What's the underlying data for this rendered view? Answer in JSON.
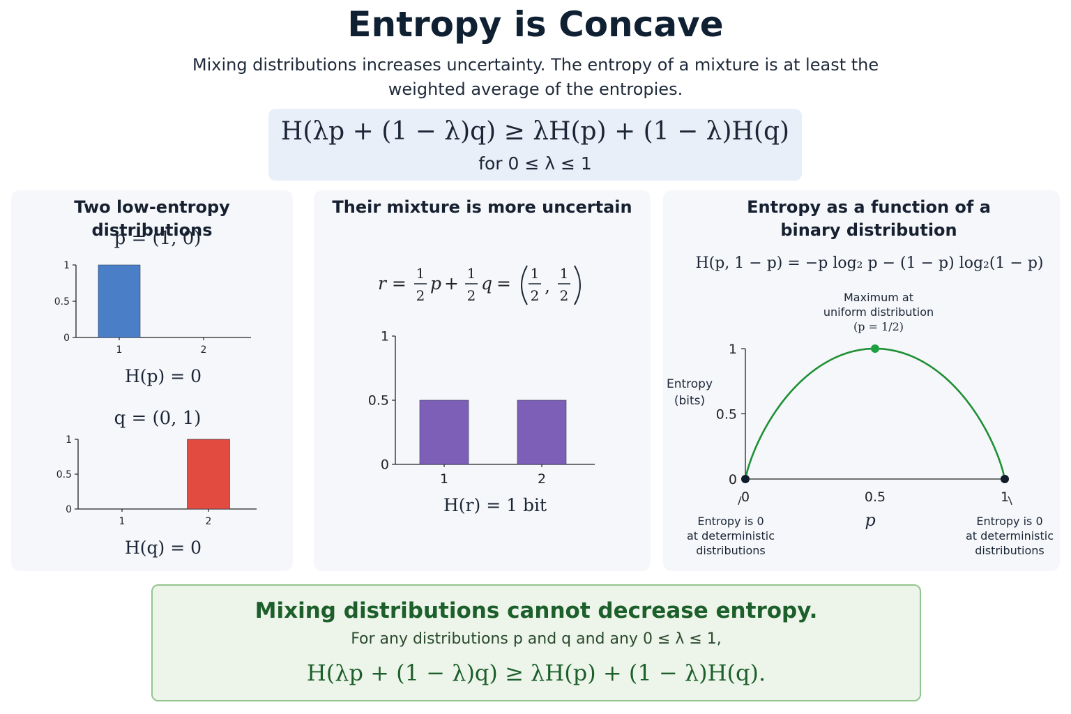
{
  "header": {
    "title": "Entropy is Concave",
    "subtitle": "Mixing distributions increases uncertainty. The entropy of a mixture is at least the weighted average of the entropies."
  },
  "formula": {
    "main": "H(λp + (1 − λ)q) ≥ λH(p) + (1 − λ)H(q)",
    "condition": "for 0 ≤ λ ≤ 1"
  },
  "panel_left": {
    "title": "Two low-entropy distributions",
    "p_label": "p = (1, 0)",
    "p_entropy": "H(p) = 0",
    "q_label": "q = (0, 1)",
    "q_entropy": "H(q) = 0"
  },
  "panel_middle": {
    "title": "Their mixture is more uncertain",
    "r_lhs": "r =",
    "half": "1/2",
    "half_num": "1",
    "half_den": "2",
    "p_sym": "p",
    "plus": "+",
    "q_sym": "q",
    "eq": "=",
    "comma": ",",
    "r_entropy": "H(r) = 1 bit"
  },
  "panel_right": {
    "title": "Entropy as a function of a binary distribution",
    "formula": "H(p, 1 − p) = −p log₂ p − (1 − p) log₂(1 − p)",
    "max_note_1": "Maximum at",
    "max_note_2": "uniform distribution",
    "max_note_3": "(p = 1/2)",
    "ylabel_1": "Entropy",
    "ylabel_2": "(bits)",
    "xlabel": "p",
    "left_note_1": "Entropy is 0",
    "left_note_2": "at deterministic",
    "left_note_3": "distributions",
    "right_note_1": "Entropy is 0",
    "right_note_2": "at deterministic",
    "right_note_3": "distributions"
  },
  "conclusion": {
    "heading": "Mixing distributions cannot decrease entropy.",
    "sub": "For any distributions p and q and any 0 ≤ λ ≤ 1,",
    "equation": "H(λp + (1 − λ)q) ≥ λH(p) + (1 − λ)H(q)."
  },
  "colors": {
    "p_bar": "#4a7fc8",
    "q_bar": "#e24b3f",
    "r_bar": "#7e5fb8",
    "curve": "#1f8f35",
    "max_point": "#1fa043",
    "end_point": "#111c2b"
  },
  "chart_data": [
    {
      "type": "bar",
      "categories": [
        "1",
        "2"
      ],
      "values": [
        1,
        0
      ],
      "ylim": [
        0,
        1
      ],
      "yticks": [
        "0",
        "0.5",
        "1"
      ],
      "xlabel": "",
      "ylabel": ""
    },
    {
      "type": "bar",
      "categories": [
        "1",
        "2"
      ],
      "values": [
        0,
        1
      ],
      "ylim": [
        0,
        1
      ],
      "yticks": [
        "0",
        "0.5",
        "1"
      ],
      "xlabel": "",
      "ylabel": ""
    },
    {
      "type": "bar",
      "categories": [
        "1",
        "2"
      ],
      "values": [
        0.5,
        0.5
      ],
      "ylim": [
        0,
        1
      ],
      "yticks": [
        "0",
        "0.5",
        "1"
      ],
      "xlabel": "",
      "ylabel": ""
    },
    {
      "type": "line",
      "function": "binary entropy",
      "xlim": [
        0,
        1
      ],
      "ylim": [
        0,
        1
      ],
      "xticks": [
        "0",
        "0.5",
        "1"
      ],
      "yticks": [
        "0",
        "0.5",
        "1"
      ],
      "xlabel": "p",
      "ylabel": "Entropy (bits)",
      "marked_points": [
        {
          "x": 0,
          "y": 0
        },
        {
          "x": 0.5,
          "y": 1
        },
        {
          "x": 1,
          "y": 0
        }
      ]
    }
  ]
}
